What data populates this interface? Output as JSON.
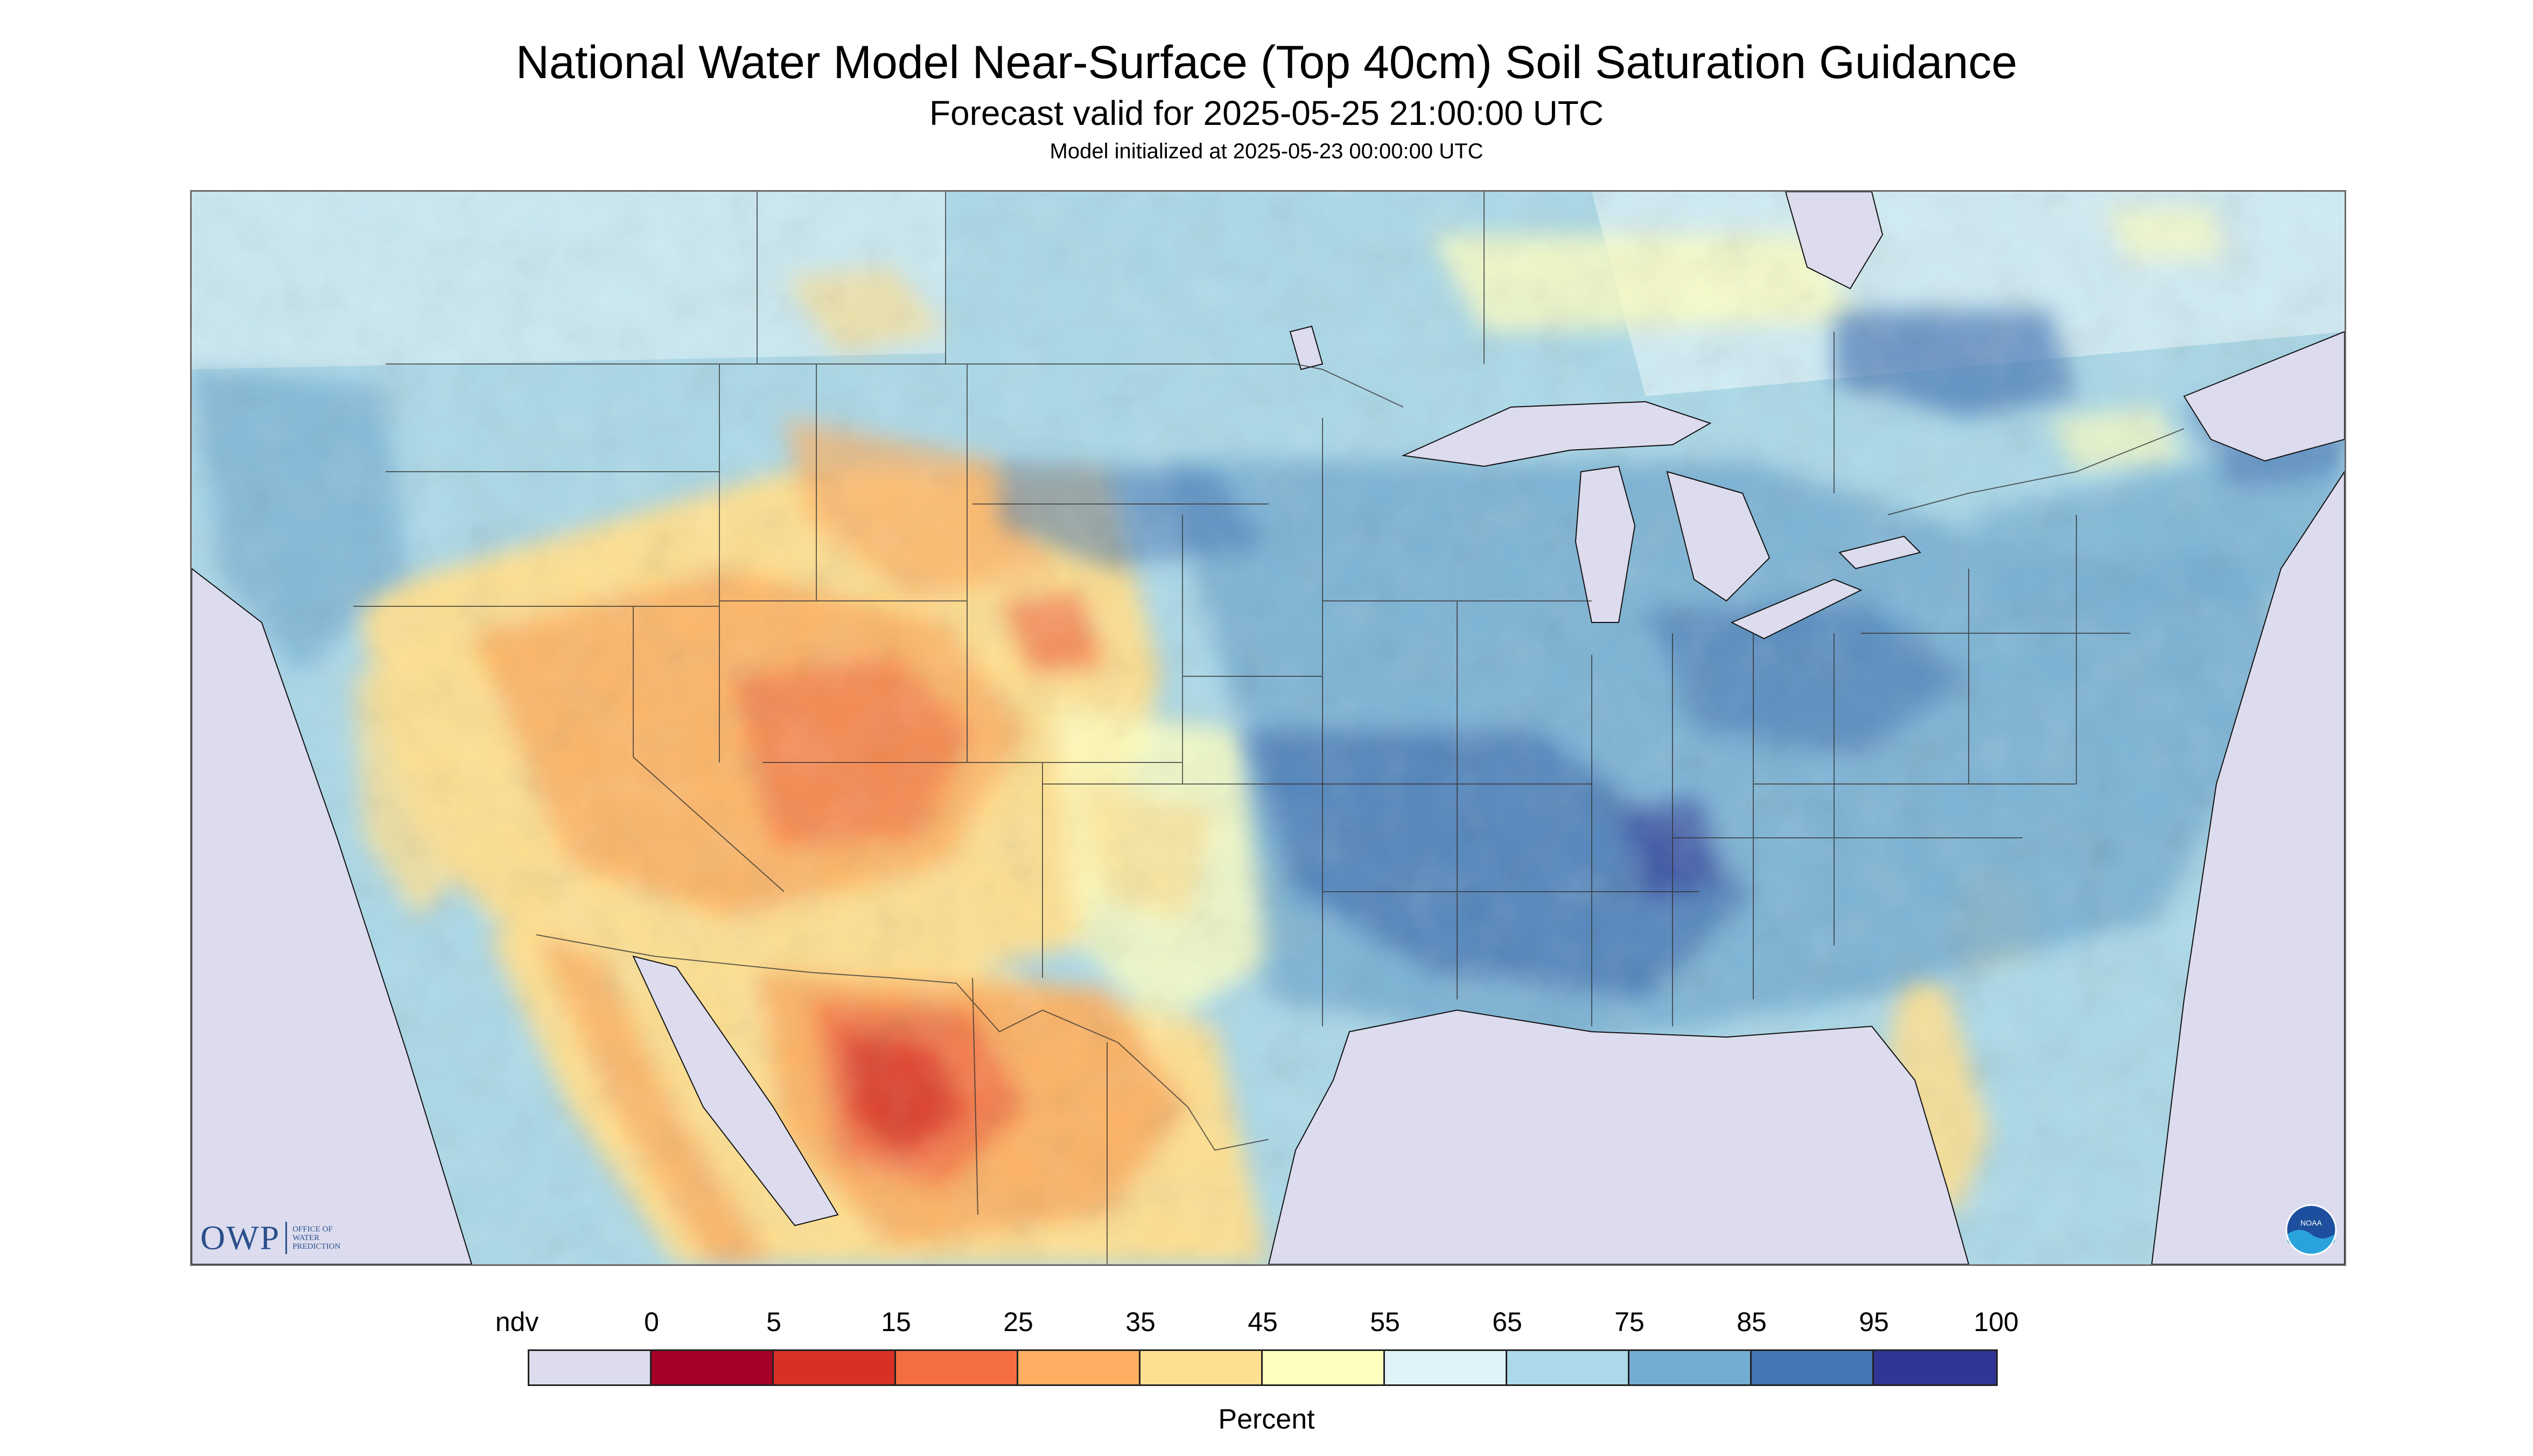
{
  "title": "National Water Model Near-Surface (Top 40cm) Soil Saturation Guidance",
  "subtitle": "Forecast valid for 2025-05-25 21:00:00 UTC",
  "model_init": "Model initialized at 2025-05-23 00:00:00 UTC",
  "logos": {
    "owp_big": "OWP",
    "owp_small": "OFFICE OF\nWATER\nPREDICTION",
    "noaa": "NOAA"
  },
  "colors": {
    "ndv": "#dcdcee",
    "c0_5": "#a50026",
    "c5_15": "#d73027",
    "c15_25": "#f46d43",
    "c25_35": "#fdae61",
    "c35_45": "#fee090",
    "c45_55": "#ffffbf",
    "c55_65": "#e0f3f8",
    "c65_75": "#abd9e9",
    "c75_85": "#74add1",
    "c85_95": "#4575b4",
    "c95_100": "#313695",
    "border": "#555555"
  },
  "legend": {
    "label": "Percent",
    "ticks": [
      "ndv",
      "0",
      "5",
      "15",
      "25",
      "35",
      "45",
      "55",
      "65",
      "75",
      "85",
      "95",
      "100"
    ],
    "swatch_colors": [
      "#dcdcee",
      "#a50026",
      "#d73027",
      "#f46d43",
      "#fdae61",
      "#fee090",
      "#ffffbf",
      "#e0f3f8",
      "#abd9e9",
      "#74add1",
      "#4575b4",
      "#313695"
    ]
  }
}
